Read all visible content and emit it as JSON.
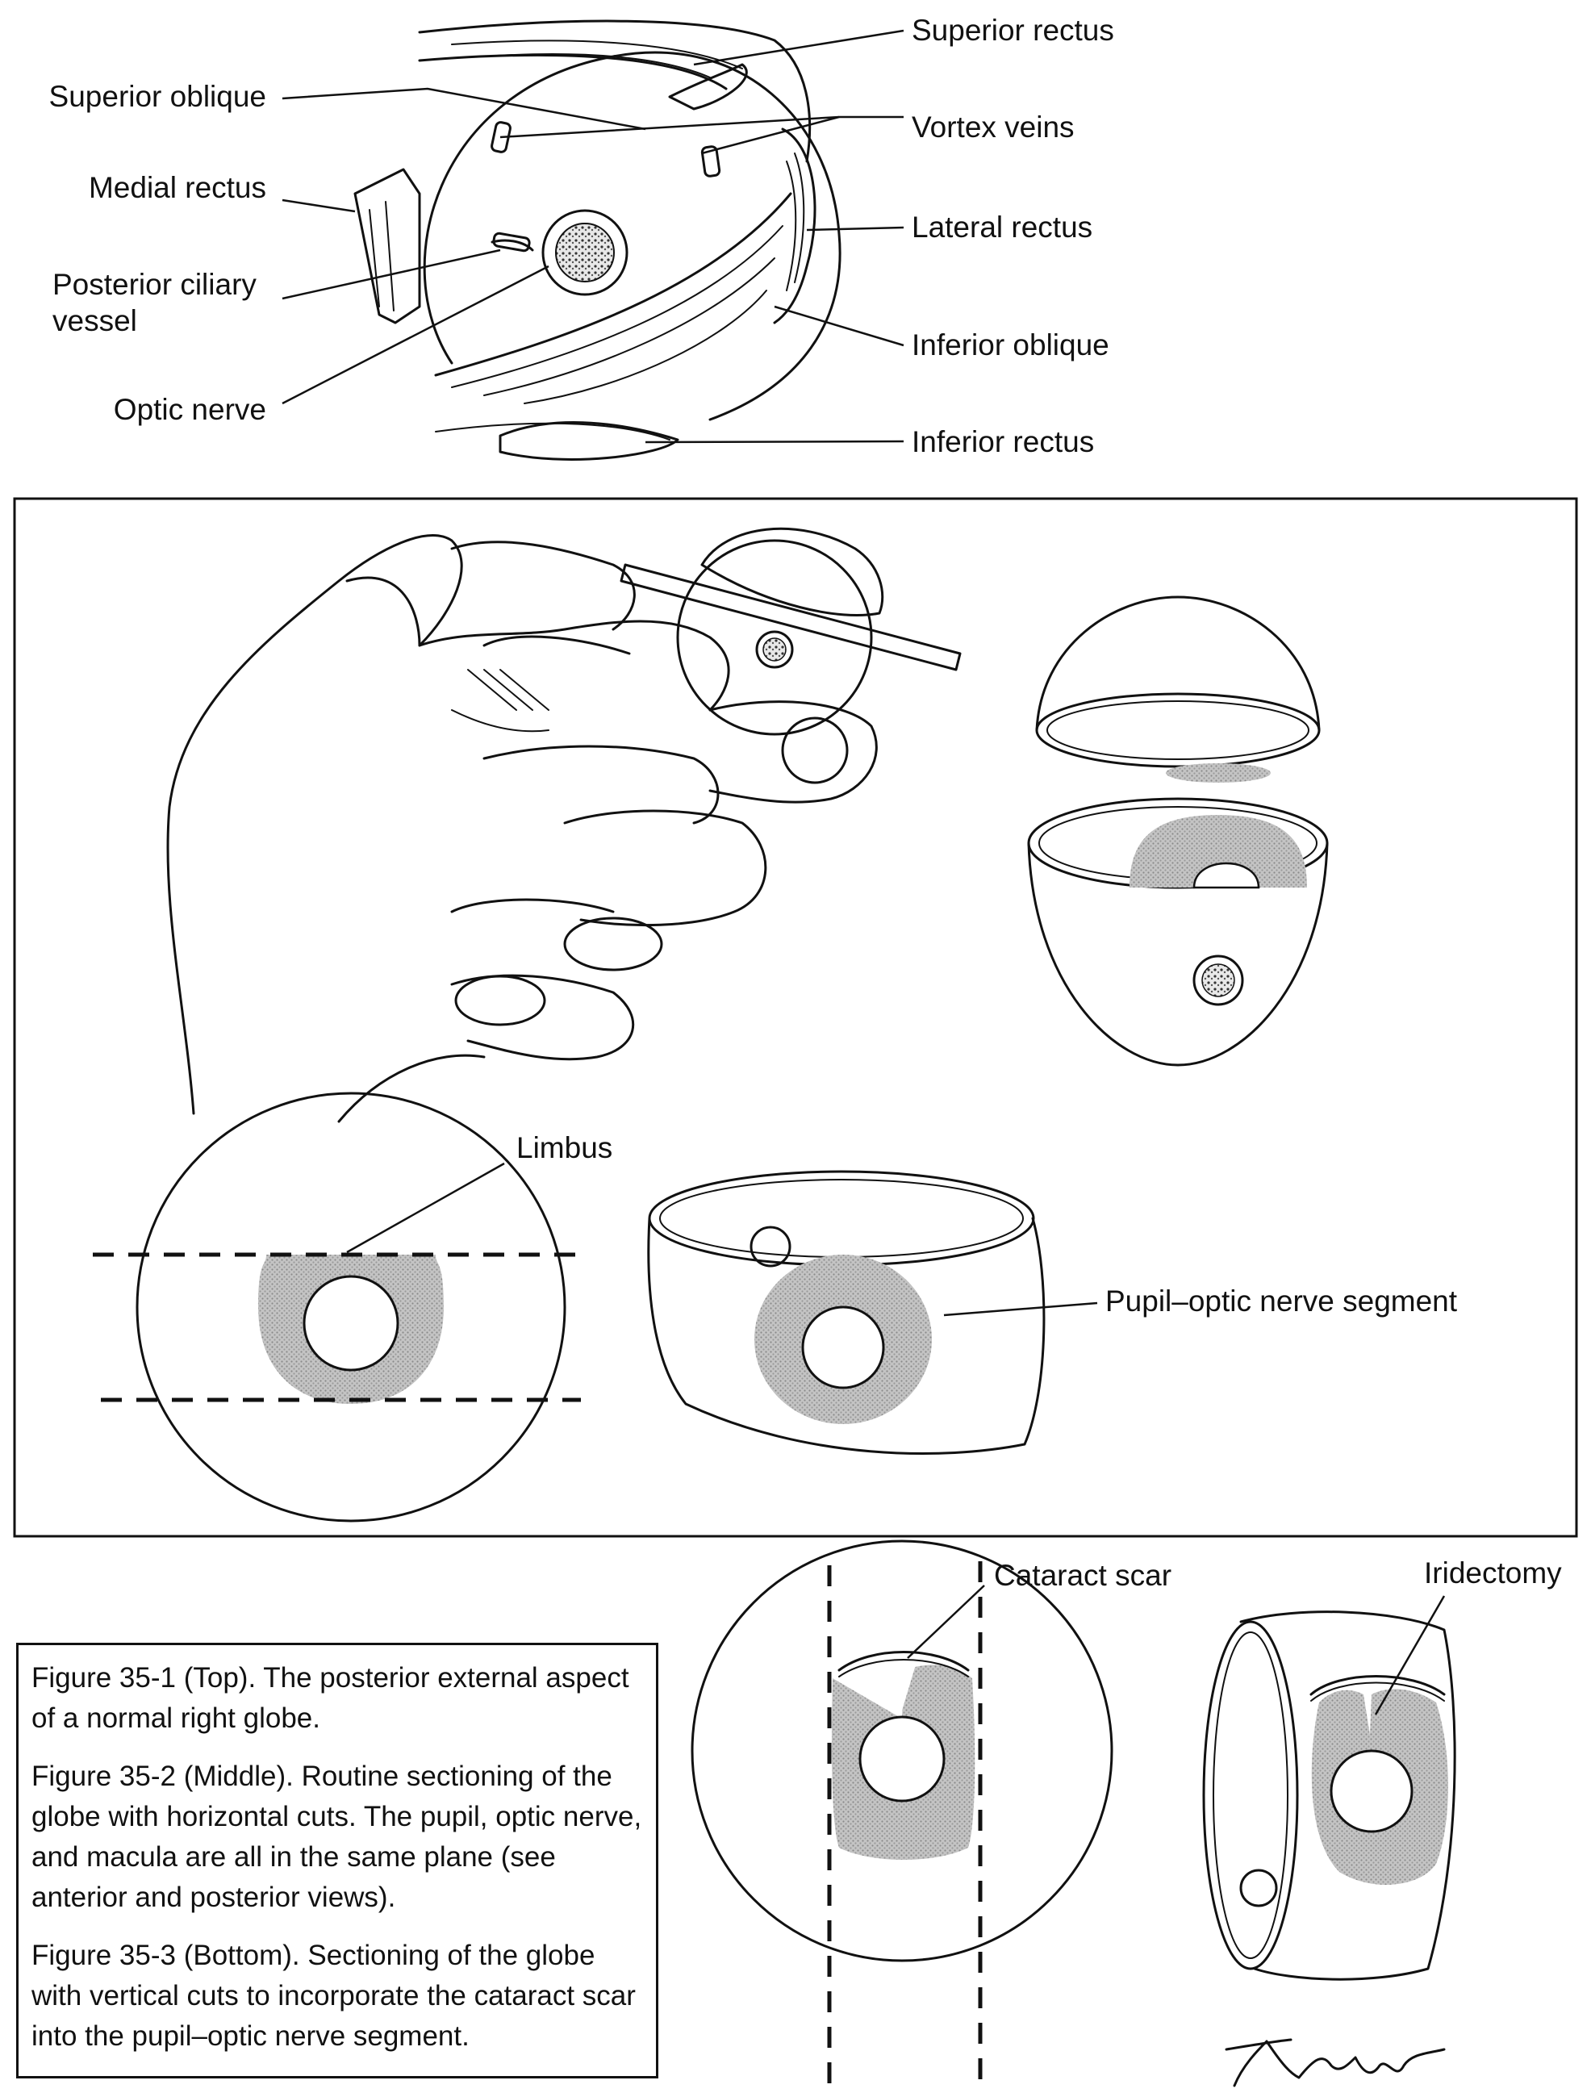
{
  "labels": {
    "superior_rectus": "Superior rectus",
    "superior_oblique": "Superior oblique",
    "vortex_veins": "Vortex veins",
    "medial_rectus": "Medial rectus",
    "lateral_rectus": "Lateral rectus",
    "posterior_ciliary_line1": "Posterior ciliary",
    "posterior_ciliary_line2": "vessel",
    "inferior_oblique": "Inferior oblique",
    "optic_nerve": "Optic nerve",
    "inferior_rectus": "Inferior rectus",
    "limbus": "Limbus",
    "pupil_optic_segment": "Pupil–optic nerve segment",
    "cataract_scar": "Cataract scar",
    "iridectomy": "Iridectomy"
  },
  "captions": [
    "Figure 35-1 (Top). The posterior external aspect of a normal right globe.",
    "Figure 35-2 (Middle). Routine sectioning of the globe with horizontal cuts. The pupil, optic nerve, and macula are all in the same plane (see anterior and posterior views).",
    "Figure 35-3 (Bottom). Sectioning of the globe with vertical cuts to incorporate the cataract scar into the pupil–optic nerve segment."
  ],
  "signature": "T Phelps"
}
